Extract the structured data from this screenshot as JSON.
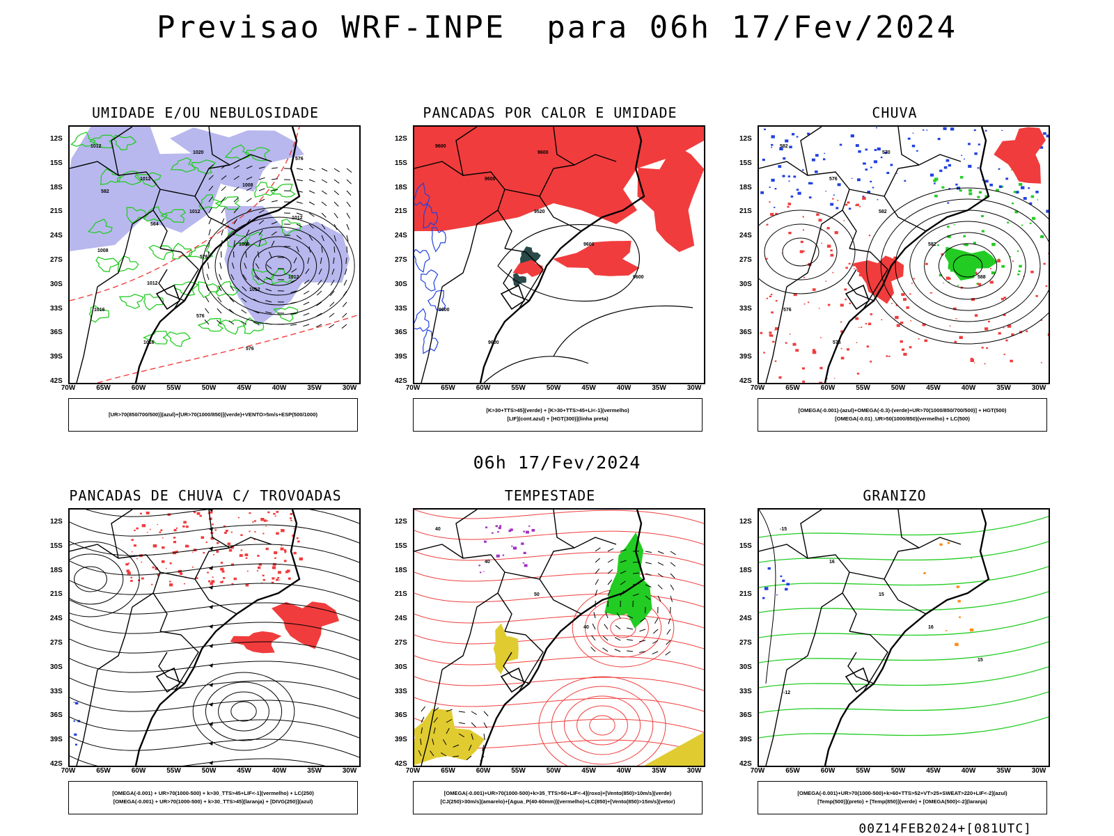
{
  "title": "Previsao WRF-INPE  para 06h 17/Fev/2024",
  "mid_title": "06h 17/Fev/2024",
  "footer": "00Z14FEB2024+[081UTC]",
  "axes": {
    "lat_labels": [
      "12S",
      "15S",
      "18S",
      "21S",
      "24S",
      "27S",
      "30S",
      "33S",
      "36S",
      "39S",
      "42S"
    ],
    "lon_labels": [
      "70W",
      "65W",
      "60W",
      "55W",
      "50W",
      "45W",
      "40W",
      "35W",
      "30W"
    ]
  },
  "colors": {
    "red": "#f03c3c",
    "green": "#22cc22",
    "blue": "#2040e0",
    "lavender": "#b8b8ee",
    "yellow": "#e0cc30",
    "purple": "#a030c0",
    "orange": "#ff8c1a",
    "dark": "#2a4a4a"
  },
  "panels": [
    {
      "title": "UMIDADE E/OU NEBULOSIDADE",
      "legend": [
        "[UR>70(850/700/500)](azul)+[UR>70(1000/850)](verde)+VENTO>5m/s+ESP(500/1000)"
      ],
      "labels": [
        "1012",
        "1012",
        "1012",
        "1008",
        "1012",
        "1016",
        "1016",
        "1020",
        "1008",
        "1012",
        "1008",
        "1012",
        "576",
        "576",
        "576",
        "582",
        "564",
        "576",
        "1012"
      ]
    },
    {
      "title": "PANCADAS POR CALOR E UMIDADE",
      "legend": [
        "[K>30+TTS>45](verde) + [K>30+TTS>45+LI<-1](vermelho)",
        "[LIF](cont.azul) + [HGT(300)](linha preta)"
      ],
      "labels": [
        "9600",
        "9600",
        "9520",
        "9600",
        "9600",
        "9600",
        "9600",
        "9600"
      ]
    },
    {
      "title": "CHUVA",
      "legend": [
        "[OMEGA(-0.001)-(azul)+OMEGA(-0.3)-(verde)+UR>70(1000/850/700/500)] + HGT(500)",
        "[OMEGA(-0.01)_UR>50(1000/850)(vermelho) + LC(500)"
      ],
      "labels": [
        "582",
        "576",
        "582",
        "582",
        "588",
        "576",
        "576",
        "570"
      ]
    },
    {
      "title": "PANCADAS DE CHUVA C/ TROVOADAS",
      "legend": [
        "[OMEGA(-0.001) + UR>70(1000-500) + k>30_TTS>45+LIF<-1](vermelho) + LC(250)",
        "[OMEGA(-0.001) + UR>70(1000-500) + k>30_TTS>45](laranja) + [DIVG(250)](azul)"
      ],
      "labels": []
    },
    {
      "title": "TEMPESTADE",
      "legend": [
        "[OMEGA(-0.001)+UR>70(1000-500)+k>35_TTS>50+LIF<-4](roxo)+[Vento(850)>10m/s](verde)",
        "[CJ(250)>30m/s](amarelo)+[Agua_P(40-60mm)](vermelho)+LC(850)+[Vento(850)>15m/s](vetor)"
      ],
      "labels": [
        "40",
        "40",
        "50",
        "40"
      ]
    },
    {
      "title": "GRANIZO",
      "legend": [
        "[OMEGA(-0.001)+UR>70(1000-500)+k>60+TTS>52+VT>25+SWEAT>220+LIF<-2](azul)",
        "[Temp(500)](preto) + [Temp(850)](verde) + [OMEGA(500)<-2](laranja)"
      ],
      "labels": [
        "-15",
        "16",
        "15",
        "16",
        "15",
        "-12"
      ]
    }
  ]
}
